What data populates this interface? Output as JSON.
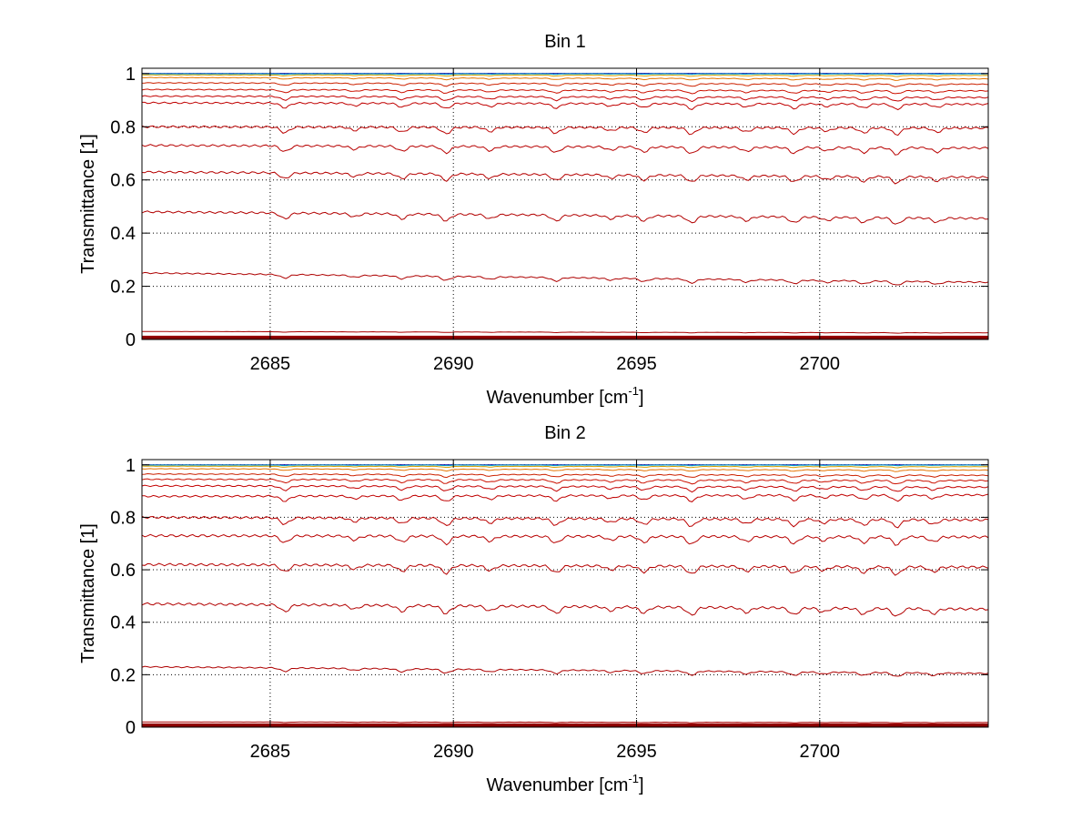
{
  "figure": {
    "background": "#ffffff",
    "axis_color": "#000000",
    "grid_color": "#000000"
  },
  "chart_data": [
    {
      "type": "line",
      "title": "Bin 1",
      "xlabel": "Wavenumber [cm",
      "xlabel_sup": "-1",
      "xlabel_tail": "]",
      "ylabel": "Transmittance [1]",
      "xlim": [
        2681.5,
        2704.6
      ],
      "ylim": [
        0,
        1.02
      ],
      "x_ticks": [
        2685,
        2690,
        2695,
        2700
      ],
      "x_tick_labels": [
        "2685",
        "2690",
        "2695",
        "2700"
      ],
      "y_ticks": [
        0,
        0.2,
        0.4,
        0.6,
        0.8,
        1
      ],
      "y_tick_labels": [
        "0",
        "0.2",
        "0.4",
        "0.6",
        "0.8",
        "1"
      ],
      "grid": true,
      "absorption_lines": [
        2685.4,
        2687.3,
        2688.6,
        2689.8,
        2691.0,
        2692.8,
        2694.3,
        2695.2,
        2696.5,
        2698.0,
        2699.3,
        2700.2,
        2701.2,
        2702.1,
        2703.2
      ],
      "series": [
        {
          "color": "#0000aa",
          "start": 1.0,
          "end": 1.0,
          "depth": 0.0
        },
        {
          "color": "#00a0c8",
          "start": 0.999,
          "end": 0.999,
          "depth": 0.002
        },
        {
          "color": "#d4a000",
          "start": 0.995,
          "end": 0.993,
          "depth": 0.004
        },
        {
          "color": "#e67300",
          "start": 0.985,
          "end": 0.98,
          "depth": 0.006
        },
        {
          "color": "#cc2200",
          "start": 0.965,
          "end": 0.96,
          "depth": 0.01
        },
        {
          "color": "#cc1100",
          "start": 0.94,
          "end": 0.935,
          "depth": 0.012
        },
        {
          "color": "#c40000",
          "start": 0.915,
          "end": 0.91,
          "depth": 0.015
        },
        {
          "color": "#c00000",
          "start": 0.89,
          "end": 0.885,
          "depth": 0.02
        },
        {
          "color": "#bb0000",
          "start": 0.8,
          "end": 0.795,
          "depth": 0.025
        },
        {
          "color": "#b80000",
          "start": 0.73,
          "end": 0.72,
          "depth": 0.025
        },
        {
          "color": "#b50000",
          "start": 0.63,
          "end": 0.61,
          "depth": 0.025
        },
        {
          "color": "#b20000",
          "start": 0.48,
          "end": 0.455,
          "depth": 0.025
        },
        {
          "color": "#ae0000",
          "start": 0.25,
          "end": 0.215,
          "depth": 0.015
        },
        {
          "color": "#aa0000",
          "start": 0.03,
          "end": 0.025,
          "depth": 0.002
        },
        {
          "color": "#990000",
          "start": 0.01,
          "end": 0.01,
          "depth": 0.0
        },
        {
          "color": "#880000",
          "start": 0.005,
          "end": 0.005,
          "depth": 0.0
        }
      ]
    },
    {
      "type": "line",
      "title": "Bin 2",
      "xlabel": "Wavenumber [cm",
      "xlabel_sup": "-1",
      "xlabel_tail": "]",
      "ylabel": "Transmittance [1]",
      "xlim": [
        2681.5,
        2704.6
      ],
      "ylim": [
        0,
        1.02
      ],
      "x_ticks": [
        2685,
        2690,
        2695,
        2700
      ],
      "x_tick_labels": [
        "2685",
        "2690",
        "2695",
        "2700"
      ],
      "y_ticks": [
        0,
        0.2,
        0.4,
        0.6,
        0.8,
        1
      ],
      "y_tick_labels": [
        "0",
        "0.2",
        "0.4",
        "0.6",
        "0.8",
        "1"
      ],
      "grid": true,
      "absorption_lines": [
        2685.4,
        2687.3,
        2688.6,
        2689.8,
        2691.0,
        2692.8,
        2694.3,
        2695.2,
        2696.5,
        2698.0,
        2699.3,
        2700.1,
        2701.2,
        2702.1,
        2703.1
      ],
      "series": [
        {
          "color": "#0000aa",
          "start": 1.0,
          "end": 1.0,
          "depth": 0.0
        },
        {
          "color": "#00a0c8",
          "start": 0.999,
          "end": 0.999,
          "depth": 0.002
        },
        {
          "color": "#d4a000",
          "start": 0.995,
          "end": 0.993,
          "depth": 0.004
        },
        {
          "color": "#e67300",
          "start": 0.985,
          "end": 0.98,
          "depth": 0.006
        },
        {
          "color": "#cc2200",
          "start": 0.965,
          "end": 0.96,
          "depth": 0.01
        },
        {
          "color": "#cc1100",
          "start": 0.945,
          "end": 0.94,
          "depth": 0.014
        },
        {
          "color": "#c40000",
          "start": 0.92,
          "end": 0.915,
          "depth": 0.018
        },
        {
          "color": "#c00000",
          "start": 0.88,
          "end": 0.885,
          "depth": 0.022
        },
        {
          "color": "#bb0000",
          "start": 0.8,
          "end": 0.79,
          "depth": 0.028
        },
        {
          "color": "#b80000",
          "start": 0.73,
          "end": 0.725,
          "depth": 0.03
        },
        {
          "color": "#b50000",
          "start": 0.62,
          "end": 0.61,
          "depth": 0.03
        },
        {
          "color": "#b20000",
          "start": 0.47,
          "end": 0.45,
          "depth": 0.03
        },
        {
          "color": "#ae0000",
          "start": 0.23,
          "end": 0.205,
          "depth": 0.015
        },
        {
          "color": "#aa0000",
          "start": 0.02,
          "end": 0.018,
          "depth": 0.002
        },
        {
          "color": "#990000",
          "start": 0.01,
          "end": 0.01,
          "depth": 0.0
        },
        {
          "color": "#880000",
          "start": 0.005,
          "end": 0.005,
          "depth": 0.0
        }
      ]
    }
  ]
}
